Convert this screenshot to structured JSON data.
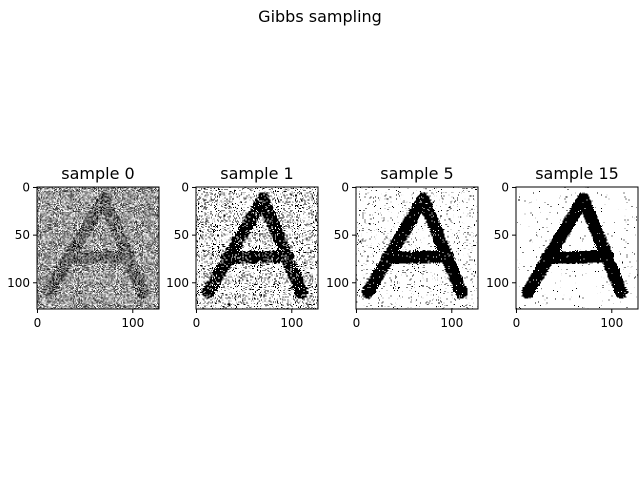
{
  "figure": {
    "title": "Gibbs sampling"
  },
  "chart_data": [
    {
      "type": "heatmap",
      "title": "sample 0",
      "colormap": "gray",
      "image_size": [
        128,
        128
      ],
      "xticks": [
        0,
        100
      ],
      "yticks": [
        0,
        50,
        100
      ],
      "xlim": [
        0,
        128
      ],
      "ylim": [
        128,
        0
      ],
      "content": "letter A, heavy gray noise",
      "noise_level": 0.45,
      "stroke_value": 0.35
    },
    {
      "type": "heatmap",
      "title": "sample 1",
      "colormap": "gray",
      "image_size": [
        128,
        128
      ],
      "xticks": [
        0,
        100
      ],
      "yticks": [
        0,
        50,
        100
      ],
      "xlim": [
        0,
        128
      ],
      "ylim": [
        128,
        0
      ],
      "content": "letter A, binary with scattered black noise",
      "noise_level": 0.14,
      "stroke_value": 0.0
    },
    {
      "type": "heatmap",
      "title": "sample 5",
      "colormap": "gray",
      "image_size": [
        128,
        128
      ],
      "xticks": [
        0,
        100
      ],
      "yticks": [
        0,
        50,
        100
      ],
      "xlim": [
        0,
        128
      ],
      "ylim": [
        128,
        0
      ],
      "content": "letter A, light residual noise",
      "noise_level": 0.04,
      "stroke_value": 0.0
    },
    {
      "type": "heatmap",
      "title": "sample 15",
      "colormap": "gray",
      "image_size": [
        128,
        128
      ],
      "xticks": [
        0,
        100
      ],
      "yticks": [
        0,
        50,
        100
      ],
      "xlim": [
        0,
        128
      ],
      "ylim": [
        128,
        0
      ],
      "content": "letter A, nearly clean",
      "noise_level": 0.012,
      "stroke_value": 0.0
    }
  ]
}
